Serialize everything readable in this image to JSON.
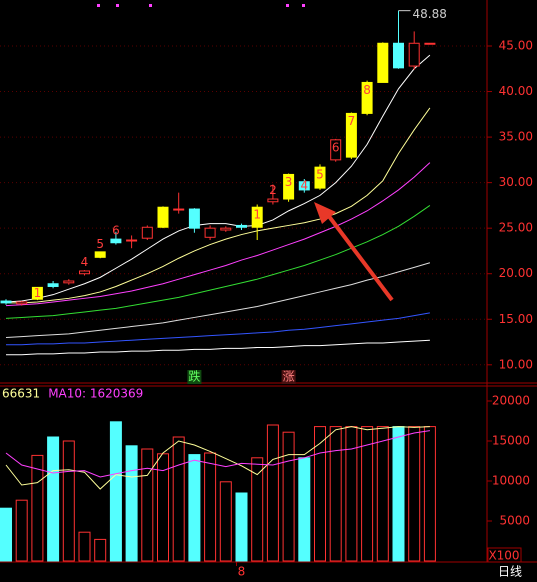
{
  "chart_data": [
    {
      "type": "candlestick",
      "open": [
        17.0,
        16.7,
        17.2,
        18.9,
        19.0,
        20.0,
        21.8,
        23.8,
        23.6,
        23.9,
        25.1,
        27.0,
        27.1,
        24.0,
        24.8,
        25.3,
        25.1,
        27.9,
        28.2,
        30.1,
        29.4,
        32.5,
        32.8,
        37.6,
        41.0,
        45.3,
        42.8,
        45.3
      ],
      "high": [
        17.2,
        17.0,
        18.5,
        19.2,
        19.4,
        20.4,
        22.4,
        24.6,
        24.2,
        25.3,
        27.4,
        28.9,
        27.2,
        25.3,
        25.2,
        25.5,
        27.6,
        29.8,
        31.0,
        30.4,
        32.0,
        34.8,
        37.7,
        41.2,
        45.4,
        48.88,
        46.6,
        45.3
      ],
      "low": [
        16.6,
        16.5,
        17.1,
        18.4,
        18.8,
        19.8,
        21.7,
        23.2,
        22.8,
        23.7,
        25.0,
        26.6,
        24.5,
        23.7,
        24.6,
        24.8,
        23.7,
        27.6,
        27.9,
        28.9,
        29.2,
        32.3,
        32.6,
        37.4,
        41.0,
        42.5,
        42.4,
        45.3
      ],
      "close": [
        16.8,
        16.9,
        18.5,
        18.6,
        19.2,
        20.3,
        22.4,
        23.4,
        23.7,
        25.1,
        27.3,
        27.1,
        25.0,
        25.0,
        25.0,
        25.1,
        27.3,
        28.2,
        30.9,
        29.2,
        31.7,
        34.7,
        37.6,
        41.0,
        45.3,
        42.6,
        45.3,
        45.3
      ],
      "candle_colors": [
        "#54ffff",
        "#ff3232",
        "#ffff00",
        "#54ffff",
        "#ff3232",
        "#ff3232",
        "#ffff00",
        "#54ffff",
        "#ff3232",
        "#ff3232",
        "#ffff00",
        "#ff3232",
        "#54ffff",
        "#ff3232",
        "#ff3232",
        "#54ffff",
        "#ffff00",
        "#ff3232",
        "#ffff00",
        "#54ffff",
        "#ffff00",
        "#ff3232",
        "#ffff00",
        "#ffff00",
        "#ffff00",
        "#54ffff",
        "#ff3232",
        "#ff3232"
      ],
      "candle_labels": [
        null,
        null,
        "1",
        null,
        null,
        "4",
        "5",
        "6",
        null,
        null,
        null,
        null,
        null,
        null,
        null,
        null,
        "1",
        "2",
        "3",
        "4",
        "5",
        "6",
        "7",
        "8",
        null,
        null,
        null,
        null
      ],
      "label_color": "#ff3c3c",
      "signal_labels": [
        null,
        null,
        null,
        null,
        null,
        null,
        null,
        null,
        null,
        null,
        null,
        null,
        "跌",
        null,
        null,
        null,
        null,
        null,
        "涨",
        null,
        null,
        null,
        null,
        null,
        null,
        null,
        null,
        null
      ],
      "max_label": "48.88",
      "series": [
        {
          "color": "#ffffff",
          "values": [
            16.9,
            17.0,
            17.3,
            17.7,
            18.3,
            18.9,
            19.6,
            20.6,
            21.6,
            22.7,
            23.8,
            24.7,
            25.3,
            25.5,
            25.5,
            25.2,
            25.3,
            25.9,
            26.9,
            27.7,
            28.6,
            30.0,
            31.8,
            34.2,
            37.3,
            40.3,
            42.5,
            44.0
          ]
        },
        {
          "color": "#ffff99",
          "values": [
            16.8,
            16.8,
            16.9,
            17.1,
            17.3,
            17.6,
            18.0,
            18.6,
            19.3,
            20.0,
            20.8,
            21.7,
            22.5,
            23.2,
            23.8,
            24.3,
            24.7,
            25.0,
            25.3,
            25.6,
            26.0,
            26.6,
            27.4,
            28.6,
            30.2,
            33.2,
            35.8,
            38.2
          ]
        },
        {
          "color": "#ff40ff",
          "values": [
            16.5,
            16.6,
            16.7,
            16.9,
            17.1,
            17.3,
            17.5,
            17.8,
            18.1,
            18.5,
            18.9,
            19.4,
            19.9,
            20.4,
            20.9,
            21.5,
            22.0,
            22.6,
            23.2,
            23.8,
            24.5,
            25.2,
            26.0,
            26.9,
            28.0,
            29.2,
            30.6,
            32.2
          ]
        },
        {
          "color": "#33dd33",
          "values": [
            15.1,
            15.2,
            15.3,
            15.4,
            15.6,
            15.8,
            16.0,
            16.2,
            16.5,
            16.8,
            17.1,
            17.4,
            17.8,
            18.2,
            18.6,
            19.0,
            19.4,
            19.9,
            20.4,
            20.9,
            21.5,
            22.1,
            22.8,
            23.5,
            24.3,
            25.2,
            26.3,
            27.5
          ]
        },
        {
          "color": "#dddddd",
          "values": [
            13.0,
            13.1,
            13.2,
            13.3,
            13.4,
            13.6,
            13.8,
            14.0,
            14.2,
            14.4,
            14.6,
            14.9,
            15.2,
            15.5,
            15.8,
            16.1,
            16.4,
            16.8,
            17.2,
            17.6,
            18.0,
            18.4,
            18.8,
            19.3,
            19.7,
            20.2,
            20.7,
            21.2
          ]
        },
        {
          "color": "#3355ff",
          "values": [
            12.2,
            12.2,
            12.3,
            12.3,
            12.4,
            12.4,
            12.5,
            12.6,
            12.7,
            12.8,
            12.9,
            13.0,
            13.1,
            13.2,
            13.3,
            13.4,
            13.5,
            13.6,
            13.8,
            13.9,
            14.1,
            14.3,
            14.5,
            14.7,
            14.9,
            15.1,
            15.4,
            15.7
          ]
        },
        {
          "color": "#ffffff",
          "values": [
            11.1,
            11.1,
            11.2,
            11.2,
            11.3,
            11.3,
            11.4,
            11.4,
            11.5,
            11.5,
            11.6,
            11.6,
            11.7,
            11.7,
            11.8,
            11.8,
            11.9,
            11.9,
            12.0,
            12.1,
            12.1,
            12.2,
            12.3,
            12.4,
            12.4,
            12.5,
            12.6,
            12.7
          ]
        }
      ],
      "ylim": [
        9.43,
        50.05
      ],
      "yticks": [
        {
          "value": 45,
          "label": "45.00"
        },
        {
          "value": 40,
          "label": "40.00"
        },
        {
          "value": 35,
          "label": "35.00"
        },
        {
          "value": 30,
          "label": "30.00"
        },
        {
          "value": 25,
          "label": "25.00"
        },
        {
          "value": 20,
          "label": "20.00"
        },
        {
          "value": 15,
          "label": "15.00"
        },
        {
          "value": 10,
          "label": "10.00"
        }
      ],
      "grid": true
    },
    {
      "type": "bar",
      "categories": [
        null,
        null,
        null,
        null,
        null,
        null,
        null,
        null,
        null,
        null,
        null,
        null,
        null,
        null,
        null,
        "8",
        null,
        null,
        null,
        null,
        null,
        null,
        null,
        null,
        null,
        null,
        null,
        null
      ],
      "values": [
        6600,
        7600,
        13200,
        15500,
        15000,
        3600,
        2700,
        17400,
        14400,
        14000,
        13400,
        15500,
        13300,
        13500,
        9900,
        8500,
        12900,
        17000,
        16100,
        12900,
        16800,
        16800,
        16800,
        16800,
        16800,
        16800,
        16800,
        16800
      ],
      "bar_colors": [
        "#54ffff",
        "#ff3232",
        "#ff3232",
        "#54ffff",
        "#ff3232",
        "#ff3232",
        "#ff3232",
        "#54ffff",
        "#54ffff",
        "#ff3232",
        "#ff3232",
        "#ff3232",
        "#54ffff",
        "#ff3232",
        "#ff3232",
        "#54ffff",
        "#ff3232",
        "#ff3232",
        "#ff3232",
        "#54ffff",
        "#ff3232",
        "#ff3232",
        "#ff3232",
        "#ff3232",
        "#ff3232",
        "#54ffff",
        "#ff3232",
        "#ff3232"
      ],
      "series": [
        {
          "name": "66631",
          "color": "#ffff99",
          "values": [
            12000,
            9500,
            9800,
            11300,
            11400,
            11100,
            9000,
            10800,
            10500,
            10700,
            13500,
            15000,
            14500,
            13700,
            12800,
            11900,
            10800,
            12700,
            13300,
            13300,
            14700,
            16400,
            16800,
            16400,
            16600,
            16800,
            16700,
            16800
          ]
        },
        {
          "name": "MA10: 1620369",
          "color": "#ff40ff",
          "values": [
            13500,
            12000,
            11500,
            11000,
            11200,
            11300,
            10500,
            10900,
            11300,
            11600,
            11300,
            12000,
            12600,
            12200,
            11800,
            12200,
            12100,
            12000,
            12500,
            12900,
            13500,
            13800,
            14000,
            14500,
            15000,
            15500,
            16000,
            16300
          ]
        }
      ],
      "ylim": [
        0,
        21625
      ],
      "yticks": [
        20000,
        15000,
        10000,
        5000
      ],
      "unit_label": "X100",
      "period_label": "日线"
    }
  ]
}
